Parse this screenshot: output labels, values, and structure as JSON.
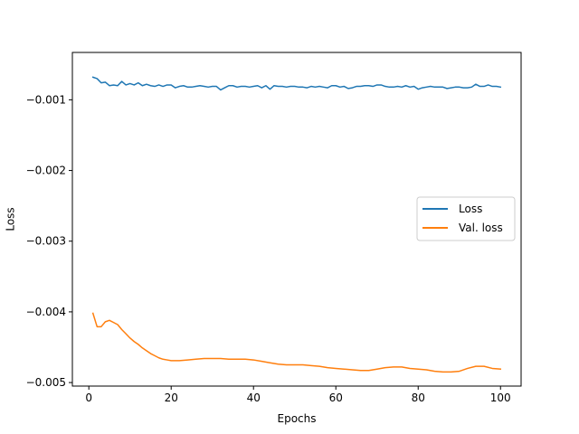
{
  "chart_data": {
    "type": "line",
    "title": "",
    "xlabel": "Epochs",
    "ylabel": "Loss",
    "xlim": [
      -4,
      105
    ],
    "ylim": [
      -0.00505,
      -0.00033
    ],
    "xticks": [
      0,
      20,
      40,
      60,
      80,
      100
    ],
    "xtick_labels": [
      "0",
      "20",
      "40",
      "60",
      "80",
      "100"
    ],
    "yticks": [
      -0.001,
      -0.002,
      -0.003,
      -0.004,
      -0.005
    ],
    "ytick_labels": [
      "−0.001",
      "−0.002",
      "−0.003",
      "−0.004",
      "−0.005"
    ],
    "grid": false,
    "legend_position": "center-right",
    "series": [
      {
        "name": "Loss",
        "color": "#1f77b4",
        "x": [
          1,
          2,
          3,
          4,
          5,
          6,
          7,
          8,
          9,
          10,
          11,
          12,
          13,
          14,
          15,
          16,
          17,
          18,
          19,
          20,
          21,
          22,
          23,
          24,
          25,
          26,
          27,
          28,
          29,
          30,
          31,
          32,
          33,
          34,
          35,
          36,
          37,
          38,
          39,
          40,
          41,
          42,
          43,
          44,
          45,
          46,
          47,
          48,
          49,
          50,
          51,
          52,
          53,
          54,
          55,
          56,
          57,
          58,
          59,
          60,
          61,
          62,
          63,
          64,
          65,
          66,
          67,
          68,
          69,
          70,
          71,
          72,
          73,
          74,
          75,
          76,
          77,
          78,
          79,
          80,
          81,
          82,
          83,
          84,
          85,
          86,
          87,
          88,
          89,
          90,
          91,
          92,
          93,
          94,
          95,
          96,
          97,
          98,
          99,
          100
        ],
        "values": [
          -0.00068,
          -0.0007,
          -0.00076,
          -0.00075,
          -0.0008,
          -0.00079,
          -0.0008,
          -0.00074,
          -0.00079,
          -0.00077,
          -0.00079,
          -0.00076,
          -0.0008,
          -0.00078,
          -0.0008,
          -0.00081,
          -0.00079,
          -0.00081,
          -0.00079,
          -0.00079,
          -0.00083,
          -0.00081,
          -0.0008,
          -0.00082,
          -0.00082,
          -0.00081,
          -0.0008,
          -0.00081,
          -0.00082,
          -0.00081,
          -0.00081,
          -0.00086,
          -0.00083,
          -0.0008,
          -0.0008,
          -0.00082,
          -0.00081,
          -0.00081,
          -0.00082,
          -0.00081,
          -0.0008,
          -0.00083,
          -0.0008,
          -0.00085,
          -0.0008,
          -0.00081,
          -0.00081,
          -0.00082,
          -0.00081,
          -0.00081,
          -0.00082,
          -0.00082,
          -0.00083,
          -0.00081,
          -0.00082,
          -0.00081,
          -0.00082,
          -0.00083,
          -0.0008,
          -0.0008,
          -0.00082,
          -0.00081,
          -0.00084,
          -0.00083,
          -0.00081,
          -0.00081,
          -0.0008,
          -0.0008,
          -0.00081,
          -0.00079,
          -0.00079,
          -0.00081,
          -0.00082,
          -0.00082,
          -0.00081,
          -0.00082,
          -0.0008,
          -0.00082,
          -0.00081,
          -0.00085,
          -0.00083,
          -0.00082,
          -0.00081,
          -0.00082,
          -0.00082,
          -0.00082,
          -0.00084,
          -0.00083,
          -0.00082,
          -0.00082,
          -0.00083,
          -0.00083,
          -0.00082,
          -0.00078,
          -0.00081,
          -0.00081,
          -0.00079,
          -0.00081,
          -0.00081,
          -0.00082
        ]
      },
      {
        "name": "Val. loss",
        "color": "#ff7f0e",
        "x": [
          1,
          2,
          3,
          4,
          5,
          6,
          7,
          8,
          9,
          10,
          11,
          12,
          13,
          14,
          15,
          16,
          17,
          18,
          19,
          20,
          22,
          24,
          26,
          28,
          30,
          32,
          34,
          36,
          38,
          40,
          42,
          44,
          46,
          48,
          50,
          52,
          54,
          56,
          58,
          60,
          62,
          64,
          66,
          68,
          70,
          72,
          74,
          76,
          78,
          80,
          82,
          84,
          86,
          88,
          90,
          92,
          94,
          96,
          98,
          100
        ],
        "values": [
          -0.00402,
          -0.00421,
          -0.00421,
          -0.00414,
          -0.00412,
          -0.00415,
          -0.00418,
          -0.00425,
          -0.00431,
          -0.00437,
          -0.00442,
          -0.00446,
          -0.00451,
          -0.00455,
          -0.00459,
          -0.00462,
          -0.00465,
          -0.00467,
          -0.00468,
          -0.00469,
          -0.00469,
          -0.00468,
          -0.00467,
          -0.00466,
          -0.00466,
          -0.00466,
          -0.00467,
          -0.00467,
          -0.00467,
          -0.00468,
          -0.0047,
          -0.00472,
          -0.00474,
          -0.00475,
          -0.00475,
          -0.00475,
          -0.00476,
          -0.00477,
          -0.00479,
          -0.0048,
          -0.00481,
          -0.00482,
          -0.00483,
          -0.00483,
          -0.00481,
          -0.00479,
          -0.00478,
          -0.00478,
          -0.0048,
          -0.00481,
          -0.00482,
          -0.00484,
          -0.00485,
          -0.00485,
          -0.00484,
          -0.0048,
          -0.00477,
          -0.00477,
          -0.0048,
          -0.00481
        ]
      }
    ]
  }
}
